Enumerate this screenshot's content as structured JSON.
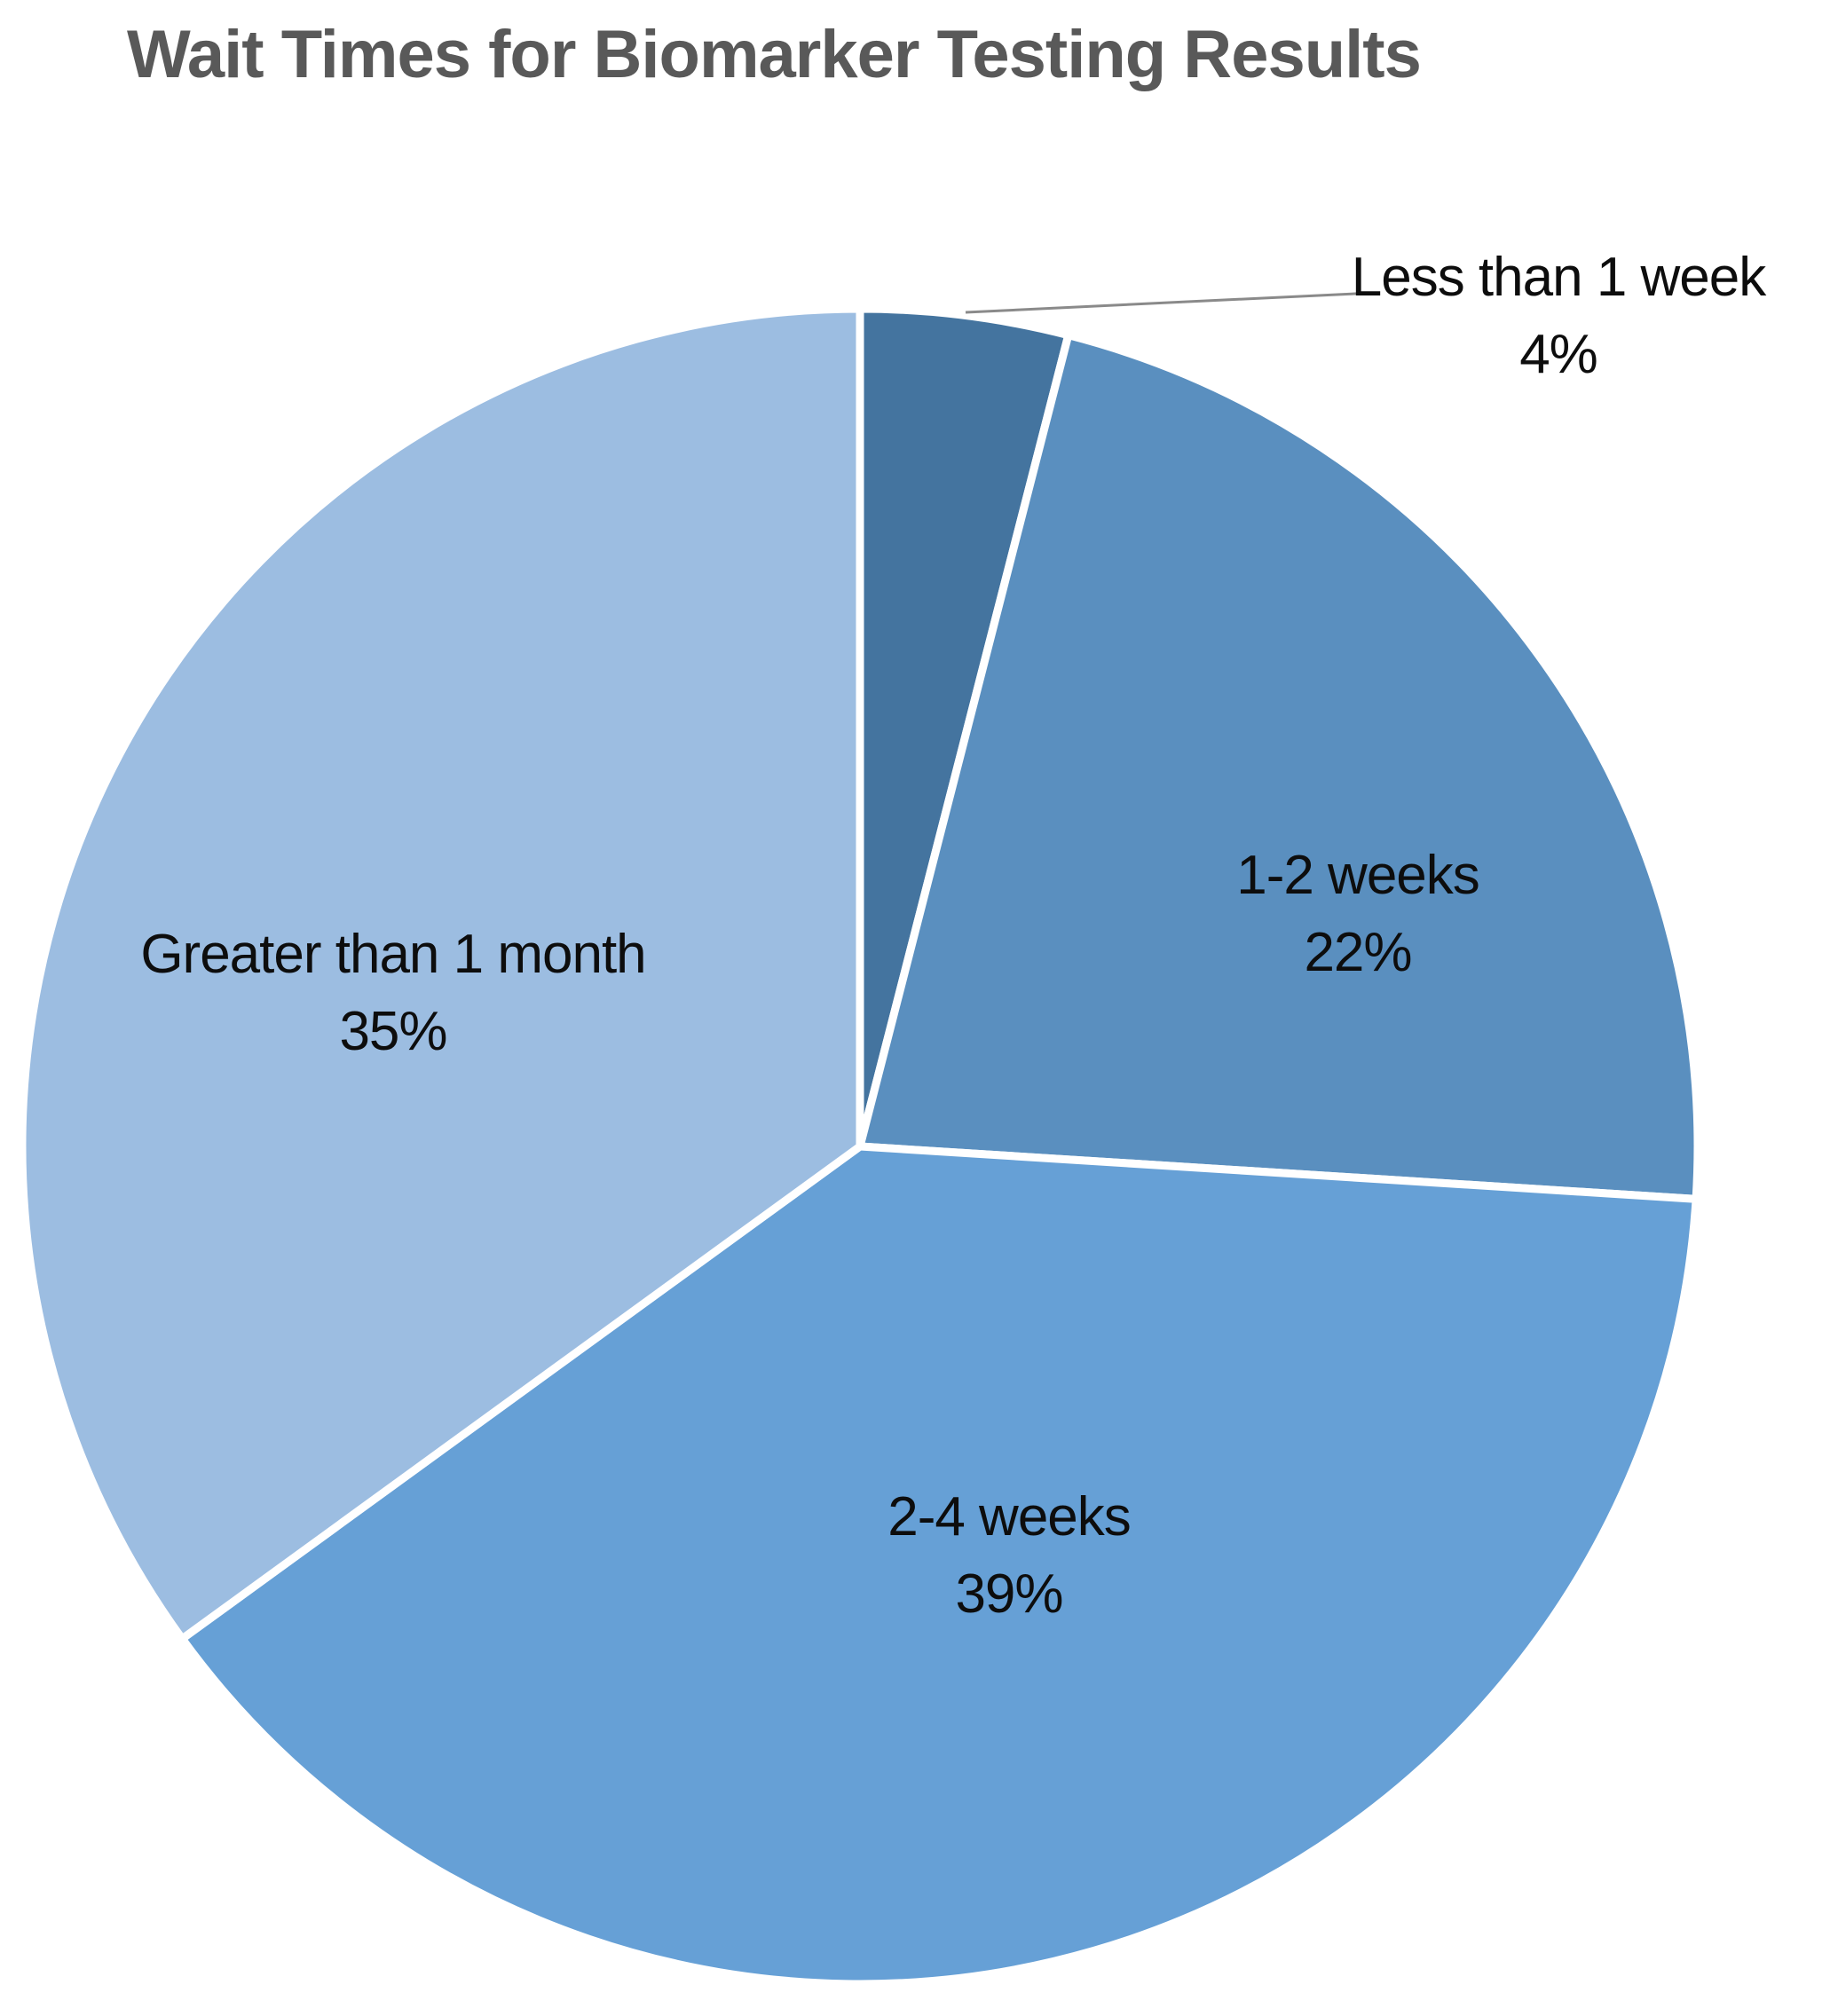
{
  "chart_data": {
    "type": "pie",
    "title": "Wait Times for Biomarker Testing Results",
    "start_angle_deg": 0,
    "direction": "clockwise",
    "legend": "none",
    "labels_show": [
      "category",
      "percentage"
    ],
    "slices": [
      {
        "id": "less-than-1-week",
        "label": "Less than 1 week",
        "value_pct": 4,
        "pct_label": "4%",
        "color": "#44749f",
        "label_placement": "outside-with-leader-line"
      },
      {
        "id": "1-2-weeks",
        "label": "1-2 weeks",
        "value_pct": 22,
        "pct_label": "22%",
        "color": "#5a8fbf",
        "label_placement": "inside"
      },
      {
        "id": "2-4-weeks",
        "label": "2-4 weeks",
        "value_pct": 39,
        "pct_label": "39%",
        "color": "#66a0d6",
        "label_placement": "inside"
      },
      {
        "id": "greater-than-1-month",
        "label": "Greater than 1 month",
        "value_pct": 35,
        "pct_label": "35%",
        "color": "#9cbde1",
        "label_placement": "inside"
      }
    ]
  },
  "colors": {
    "title_text": "#595959",
    "label_text": "#0d0d0d",
    "slice_border": "#ffffff",
    "leader_line": "#8a8a8a",
    "background": "#ffffff"
  }
}
